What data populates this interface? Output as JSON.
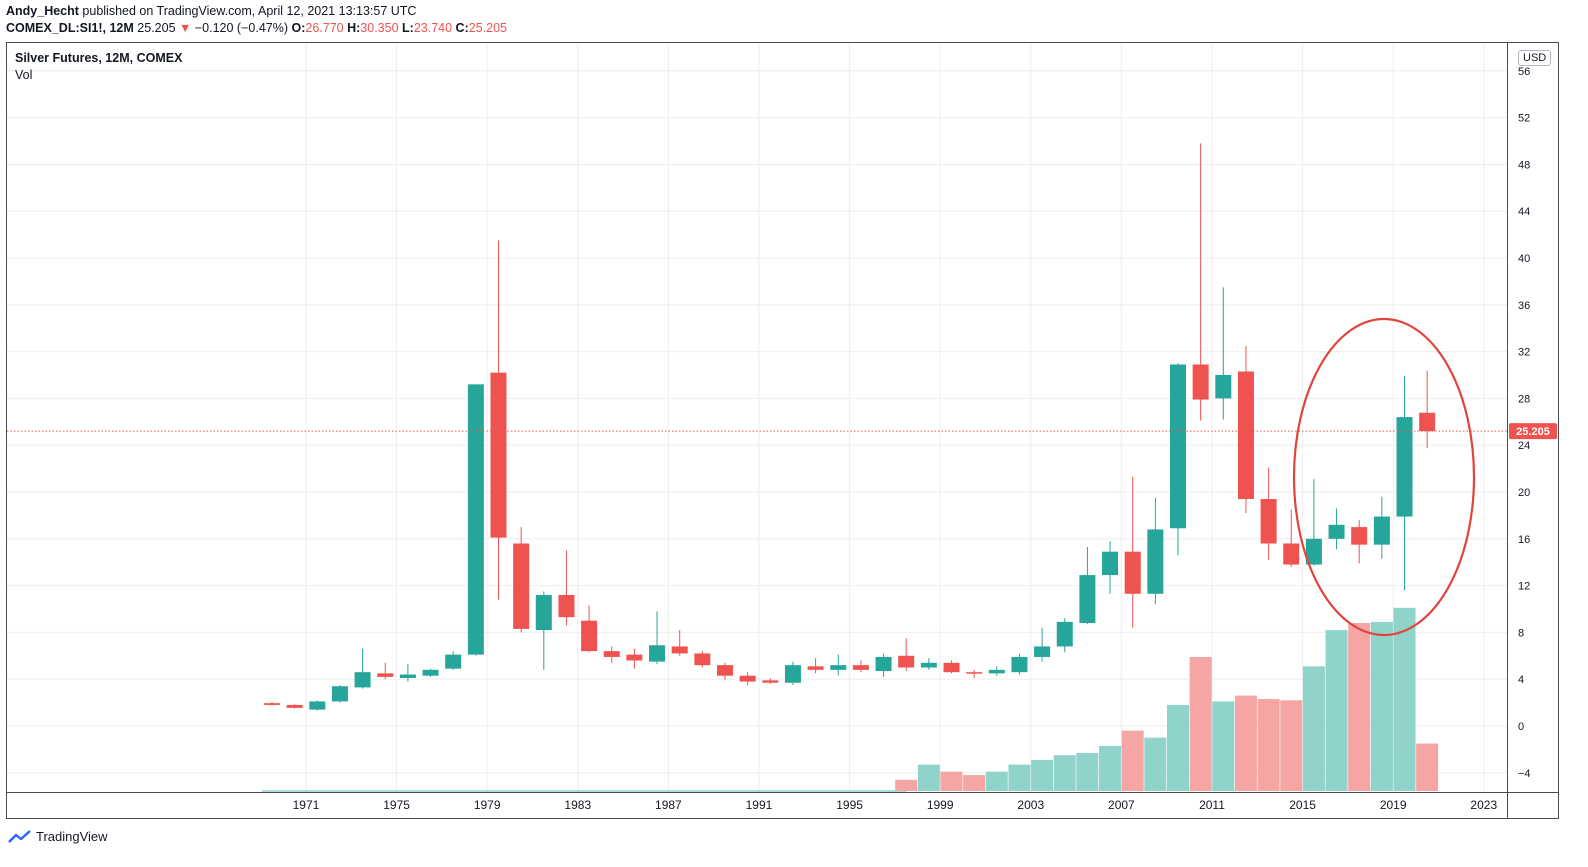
{
  "header": {
    "author": "Andy_Hecht",
    "published_text": "published on TradingView.com, April 12, 2021 13:13:57 UTC",
    "symbol": "COMEX_DL:SI1!, 12M",
    "last": "25.205",
    "change": "−0.120 (−0.47%)",
    "o_label": "O:",
    "o_value": "26.770",
    "h_label": "H:",
    "h_value": "30.350",
    "l_label": "L:",
    "l_value": "23.740",
    "c_label": "C:",
    "c_value": "25.205"
  },
  "legend": {
    "series": "Silver Futures, 12M, COMEX",
    "volume": "Vol"
  },
  "currency": "USD",
  "last_price_label": "25.205",
  "footer": {
    "brand": "TradingView"
  },
  "colors": {
    "up": "#26a69a",
    "down": "#ef5350",
    "vol_up": "#8fd3cb",
    "vol_down": "#f5a5a3",
    "grid": "#eeeeee",
    "circle": "#e0443a"
  },
  "chart_data": {
    "type": "candlestick",
    "interval": "12M",
    "ylim": [
      -5.7,
      56
    ],
    "y_ticks": [
      -4,
      0,
      4,
      8,
      12,
      16,
      20,
      24,
      28,
      32,
      36,
      40,
      44,
      48,
      52,
      56
    ],
    "y_tick_labels": [
      "−4",
      "0",
      "4",
      "8",
      "12",
      "16",
      "20",
      "24",
      "28",
      "32",
      "36",
      "40",
      "44",
      "48",
      "52",
      "56"
    ],
    "x_tick_labels": [
      "1971",
      "1975",
      "1979",
      "1983",
      "1987",
      "1991",
      "1995",
      "1999",
      "2003",
      "2007",
      "2011",
      "2015",
      "2019",
      "2023"
    ],
    "last_price": 25.205,
    "candles": [
      {
        "year": 1969,
        "o": 1.95,
        "h": 2.05,
        "l": 1.75,
        "c": 1.8
      },
      {
        "year": 1970,
        "o": 1.8,
        "h": 1.85,
        "l": 1.5,
        "c": 1.55
      },
      {
        "year": 1971,
        "o": 1.4,
        "h": 2.2,
        "l": 1.3,
        "c": 2.1
      },
      {
        "year": 1972,
        "o": 2.1,
        "h": 3.5,
        "l": 2.0,
        "c": 3.4
      },
      {
        "year": 1973,
        "o": 3.3,
        "h": 6.6,
        "l": 3.2,
        "c": 4.6
      },
      {
        "year": 1974,
        "o": 4.5,
        "h": 5.4,
        "l": 4.0,
        "c": 4.2
      },
      {
        "year": 1975,
        "o": 4.1,
        "h": 5.3,
        "l": 3.8,
        "c": 4.4
      },
      {
        "year": 1976,
        "o": 4.3,
        "h": 4.9,
        "l": 4.2,
        "c": 4.8
      },
      {
        "year": 1977,
        "o": 4.9,
        "h": 6.4,
        "l": 4.8,
        "c": 6.1
      },
      {
        "year": 1978,
        "o": 6.1,
        "h": 29.2,
        "l": 6.0,
        "c": 29.2
      },
      {
        "year": 1979,
        "o": 30.2,
        "h": 41.5,
        "l": 10.8,
        "c": 16.1
      },
      {
        "year": 1980,
        "o": 15.6,
        "h": 17.0,
        "l": 8.0,
        "c": 8.3
      },
      {
        "year": 1981,
        "o": 8.2,
        "h": 11.5,
        "l": 4.8,
        "c": 11.2
      },
      {
        "year": 1982,
        "o": 11.2,
        "h": 15.0,
        "l": 8.6,
        "c": 9.3
      },
      {
        "year": 1983,
        "o": 9.0,
        "h": 10.3,
        "l": 6.3,
        "c": 6.4
      },
      {
        "year": 1984,
        "o": 6.4,
        "h": 6.8,
        "l": 5.4,
        "c": 5.9
      },
      {
        "year": 1985,
        "o": 6.1,
        "h": 6.6,
        "l": 4.9,
        "c": 5.6
      },
      {
        "year": 1986,
        "o": 5.5,
        "h": 9.8,
        "l": 5.3,
        "c": 6.9
      },
      {
        "year": 1987,
        "o": 6.8,
        "h": 8.2,
        "l": 6.0,
        "c": 6.2
      },
      {
        "year": 1988,
        "o": 6.2,
        "h": 6.4,
        "l": 5.0,
        "c": 5.2
      },
      {
        "year": 1989,
        "o": 5.2,
        "h": 5.4,
        "l": 3.9,
        "c": 4.3
      },
      {
        "year": 1990,
        "o": 4.3,
        "h": 4.6,
        "l": 3.5,
        "c": 3.8
      },
      {
        "year": 1991,
        "o": 3.9,
        "h": 4.1,
        "l": 3.6,
        "c": 3.7
      },
      {
        "year": 1992,
        "o": 3.7,
        "h": 5.5,
        "l": 3.5,
        "c": 5.2
      },
      {
        "year": 1993,
        "o": 5.1,
        "h": 5.8,
        "l": 4.5,
        "c": 4.8
      },
      {
        "year": 1994,
        "o": 4.8,
        "h": 6.1,
        "l": 4.3,
        "c": 5.2
      },
      {
        "year": 1995,
        "o": 5.2,
        "h": 5.6,
        "l": 4.6,
        "c": 4.8
      },
      {
        "year": 1996,
        "o": 4.7,
        "h": 6.2,
        "l": 4.2,
        "c": 5.9
      },
      {
        "year": 1997,
        "o": 6.0,
        "h": 7.5,
        "l": 4.7,
        "c": 5.0
      },
      {
        "year": 1998,
        "o": 5.0,
        "h": 5.8,
        "l": 4.8,
        "c": 5.4
      },
      {
        "year": 1999,
        "o": 5.4,
        "h": 5.6,
        "l": 4.5,
        "c": 4.6
      },
      {
        "year": 2000,
        "o": 4.6,
        "h": 4.8,
        "l": 4.1,
        "c": 4.5
      },
      {
        "year": 2001,
        "o": 4.5,
        "h": 5.1,
        "l": 4.3,
        "c": 4.8
      },
      {
        "year": 2002,
        "o": 4.6,
        "h": 6.2,
        "l": 4.4,
        "c": 5.9
      },
      {
        "year": 2003,
        "o": 5.9,
        "h": 8.4,
        "l": 5.5,
        "c": 6.8
      },
      {
        "year": 2004,
        "o": 6.8,
        "h": 9.2,
        "l": 6.3,
        "c": 8.9
      },
      {
        "year": 2005,
        "o": 8.8,
        "h": 15.3,
        "l": 8.7,
        "c": 12.9
      },
      {
        "year": 2006,
        "o": 12.9,
        "h": 15.8,
        "l": 11.3,
        "c": 14.9
      },
      {
        "year": 2007,
        "o": 14.9,
        "h": 21.3,
        "l": 8.4,
        "c": 11.3
      },
      {
        "year": 2008,
        "o": 11.3,
        "h": 19.5,
        "l": 10.4,
        "c": 16.8
      },
      {
        "year": 2009,
        "o": 16.9,
        "h": 31.0,
        "l": 14.6,
        "c": 30.9
      },
      {
        "year": 2010,
        "o": 30.9,
        "h": 49.8,
        "l": 26.1,
        "c": 27.9
      },
      {
        "year": 2011,
        "o": 28.0,
        "h": 37.5,
        "l": 26.2,
        "c": 30.0
      },
      {
        "year": 2012,
        "o": 30.3,
        "h": 32.5,
        "l": 18.2,
        "c": 19.4
      },
      {
        "year": 2013,
        "o": 19.4,
        "h": 22.1,
        "l": 14.2,
        "c": 15.6
      },
      {
        "year": 2014,
        "o": 15.6,
        "h": 18.5,
        "l": 13.6,
        "c": 13.8
      },
      {
        "year": 2015,
        "o": 13.8,
        "h": 21.1,
        "l": 13.7,
        "c": 16.0
      },
      {
        "year": 2016,
        "o": 16.0,
        "h": 18.6,
        "l": 15.1,
        "c": 17.2
      },
      {
        "year": 2017,
        "o": 17.0,
        "h": 17.6,
        "l": 13.9,
        "c": 15.5
      },
      {
        "year": 2018,
        "o": 15.5,
        "h": 19.6,
        "l": 14.3,
        "c": 17.9
      },
      {
        "year": 2019,
        "o": 17.9,
        "h": 29.9,
        "l": 11.6,
        "c": 26.4
      },
      {
        "year": 2020,
        "o": 26.77,
        "h": 30.35,
        "l": 23.74,
        "c": 25.205
      }
    ],
    "volume_overlay": [
      {
        "year": 1997,
        "bottom": -5.7,
        "top": -4.6,
        "up": false
      },
      {
        "year": 1998,
        "bottom": -5.7,
        "top": -3.3,
        "up": true
      },
      {
        "year": 1999,
        "bottom": -5.7,
        "top": -3.9,
        "up": false
      },
      {
        "year": 2000,
        "bottom": -5.7,
        "top": -4.2,
        "up": false
      },
      {
        "year": 2001,
        "bottom": -5.7,
        "top": -3.9,
        "up": true
      },
      {
        "year": 2002,
        "bottom": -5.7,
        "top": -3.3,
        "up": true
      },
      {
        "year": 2003,
        "bottom": -5.7,
        "top": -2.9,
        "up": true
      },
      {
        "year": 2004,
        "bottom": -5.7,
        "top": -2.5,
        "up": true
      },
      {
        "year": 2005,
        "bottom": -5.7,
        "top": -2.3,
        "up": true
      },
      {
        "year": 2006,
        "bottom": -5.7,
        "top": -1.7,
        "up": true
      },
      {
        "year": 2007,
        "bottom": -5.7,
        "top": -0.4,
        "up": false
      },
      {
        "year": 2008,
        "bottom": -5.7,
        "top": -1.0,
        "up": true
      },
      {
        "year": 2009,
        "bottom": -5.7,
        "top": 1.8,
        "up": true
      },
      {
        "year": 2010,
        "bottom": -5.7,
        "top": 5.9,
        "up": false
      },
      {
        "year": 2011,
        "bottom": -5.7,
        "top": 2.1,
        "up": true
      },
      {
        "year": 2012,
        "bottom": -5.7,
        "top": 2.6,
        "up": false
      },
      {
        "year": 2013,
        "bottom": -5.7,
        "top": 2.3,
        "up": false
      },
      {
        "year": 2014,
        "bottom": -5.7,
        "top": 2.2,
        "up": false
      },
      {
        "year": 2015,
        "bottom": -5.7,
        "top": 5.1,
        "up": true
      },
      {
        "year": 2016,
        "bottom": -5.7,
        "top": 8.2,
        "up": true
      },
      {
        "year": 2017,
        "bottom": -5.7,
        "top": 8.8,
        "up": false
      },
      {
        "year": 2018,
        "bottom": -5.7,
        "top": 8.9,
        "up": true
      },
      {
        "year": 2019,
        "bottom": -5.7,
        "top": 10.1,
        "up": true
      },
      {
        "year": 2020,
        "bottom": -5.7,
        "top": -1.5,
        "up": false
      }
    ]
  }
}
